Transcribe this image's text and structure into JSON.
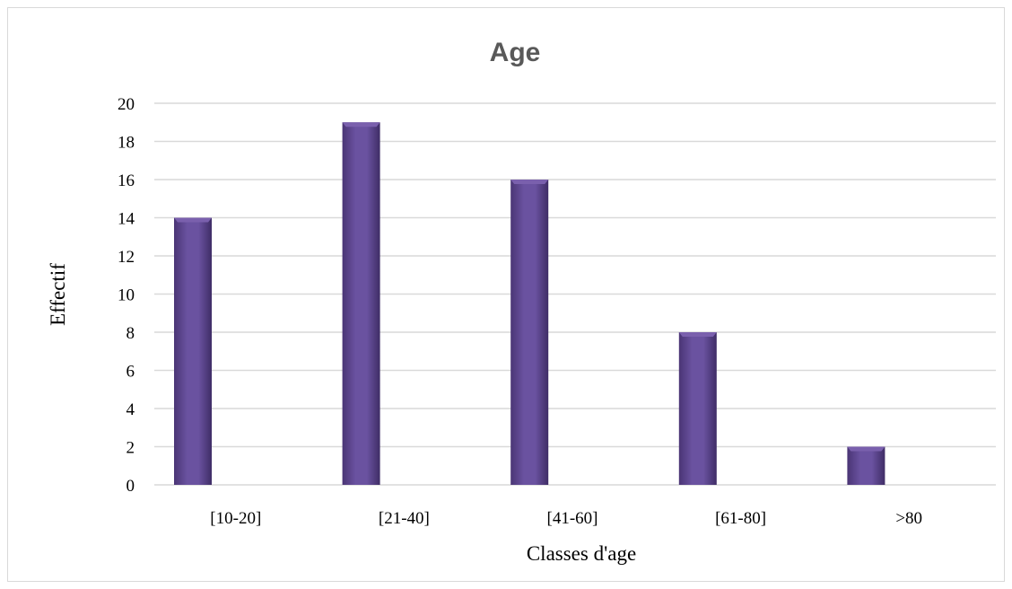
{
  "chart_data": {
    "type": "bar",
    "title": "Age",
    "xlabel": "Classes d'age",
    "ylabel": "Effectif",
    "categories": [
      "[10-20]",
      "[21-40]",
      "[41-60]",
      "[61-80]",
      ">80"
    ],
    "values": [
      14,
      19,
      16,
      8,
      2
    ],
    "ylim": [
      0,
      20
    ],
    "yticks": [
      0,
      2,
      4,
      6,
      8,
      10,
      12,
      14,
      16,
      18,
      20
    ],
    "grid": true,
    "legend": "none",
    "colors": {
      "bar": "#5f4790",
      "bar_light": "#7a60ad",
      "bar_dark": "#3f2d66",
      "grid": "#d9d9d9"
    }
  }
}
